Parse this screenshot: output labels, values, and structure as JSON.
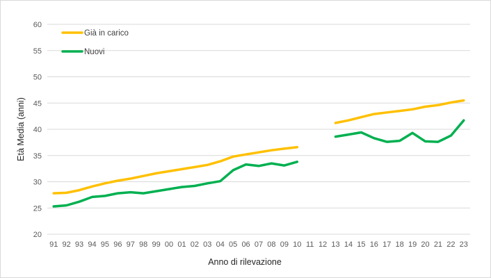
{
  "chart_data": {
    "type": "line",
    "title": "",
    "xlabel": "Anno di rilevazione",
    "ylabel": "Età Media (anni)",
    "ylim": [
      20,
      60
    ],
    "yticks": [
      20,
      25,
      30,
      35,
      40,
      45,
      50,
      55,
      60
    ],
    "grid": "horizontal",
    "legend_position": "top-left",
    "categories": [
      "91",
      "92",
      "93",
      "94",
      "95",
      "96",
      "97",
      "98",
      "99",
      "00",
      "01",
      "02",
      "03",
      "04",
      "05",
      "06",
      "07",
      "08",
      "09",
      "10",
      "11",
      "12",
      "13",
      "14",
      "15",
      "16",
      "17",
      "18",
      "19",
      "20",
      "21",
      "22",
      "23"
    ],
    "series": [
      {
        "name": "Già in carico",
        "color": "#FFC000",
        "values": [
          27.8,
          27.9,
          28.4,
          29.1,
          29.7,
          30.2,
          30.6,
          31.1,
          31.6,
          32.0,
          32.4,
          32.8,
          33.2,
          33.9,
          34.8,
          35.2,
          35.6,
          36.0,
          36.3,
          36.6,
          null,
          null,
          41.2,
          41.7,
          42.3,
          42.9,
          43.2,
          43.5,
          43.8,
          44.3,
          44.6,
          45.1,
          45.5
        ]
      },
      {
        "name": "Nuovi",
        "color": "#00B050",
        "values": [
          25.3,
          25.5,
          26.2,
          27.1,
          27.3,
          27.8,
          28.0,
          27.8,
          28.2,
          28.6,
          29.0,
          29.2,
          29.7,
          30.1,
          32.2,
          33.3,
          33.0,
          33.5,
          33.1,
          33.8,
          null,
          null,
          38.6,
          39.0,
          39.4,
          38.3,
          37.6,
          37.8,
          39.3,
          37.7,
          37.6,
          38.8,
          41.7
        ]
      }
    ]
  }
}
